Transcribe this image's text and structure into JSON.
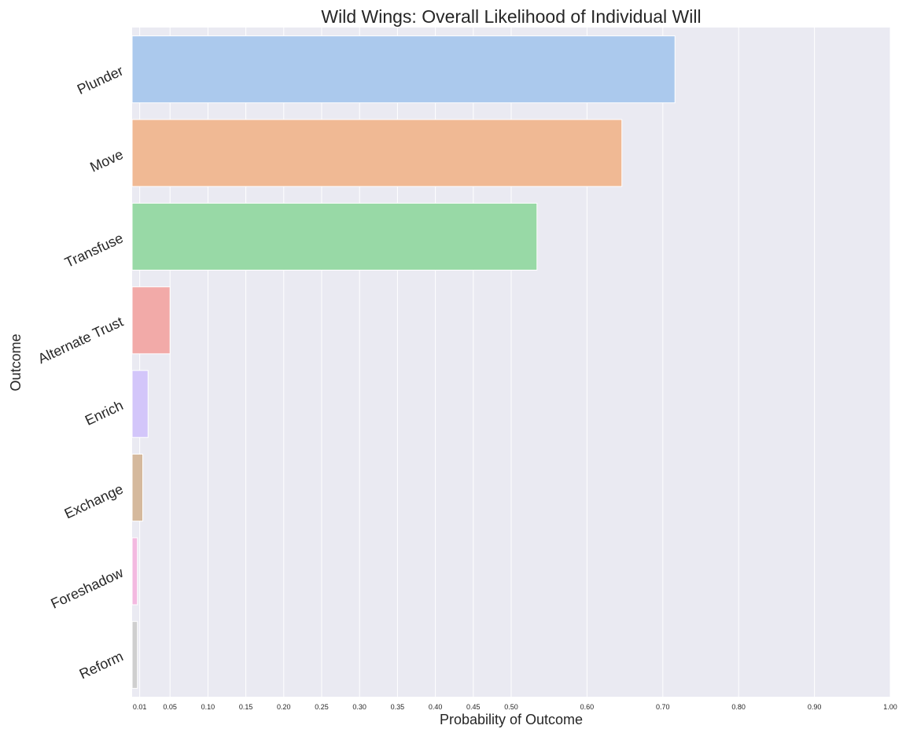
{
  "chart_data": {
    "type": "bar",
    "orientation": "horizontal",
    "title": "Wild Wings: Overall Likelihood of Individual Will",
    "xlabel": "Probability of Outcome",
    "ylabel": "Outcome",
    "xlim": [
      0,
      1.0
    ],
    "grid": true,
    "xticks": [
      0.01,
      0.05,
      0.1,
      0.15,
      0.2,
      0.25,
      0.3,
      0.35,
      0.4,
      0.45,
      0.5,
      0.6,
      0.7,
      0.8,
      0.9,
      1.0
    ],
    "xtick_labels": [
      "0.01",
      "0.05",
      "0.10",
      "0.15",
      "0.20",
      "0.25",
      "0.30",
      "0.35",
      "0.40",
      "0.45",
      "0.50",
      "0.60",
      "0.70",
      "0.80",
      "0.90",
      "1.00"
    ],
    "categories": [
      "Plunder",
      "Move",
      "Transfuse",
      "Alternate Trust",
      "Enrich",
      "Exchange",
      "Foreshadow",
      "Reform"
    ],
    "values": [
      0.716,
      0.646,
      0.534,
      0.05,
      0.021,
      0.014,
      0.007,
      0.007
    ],
    "colors": [
      "#abc9ed",
      "#f0b994",
      "#98d9a6",
      "#f2aaa8",
      "#d3c6fa",
      "#d5b99d",
      "#f3b9e0",
      "#cfcfcf"
    ],
    "background": "#eaeaf2",
    "gridline_color": "#ffffff"
  }
}
